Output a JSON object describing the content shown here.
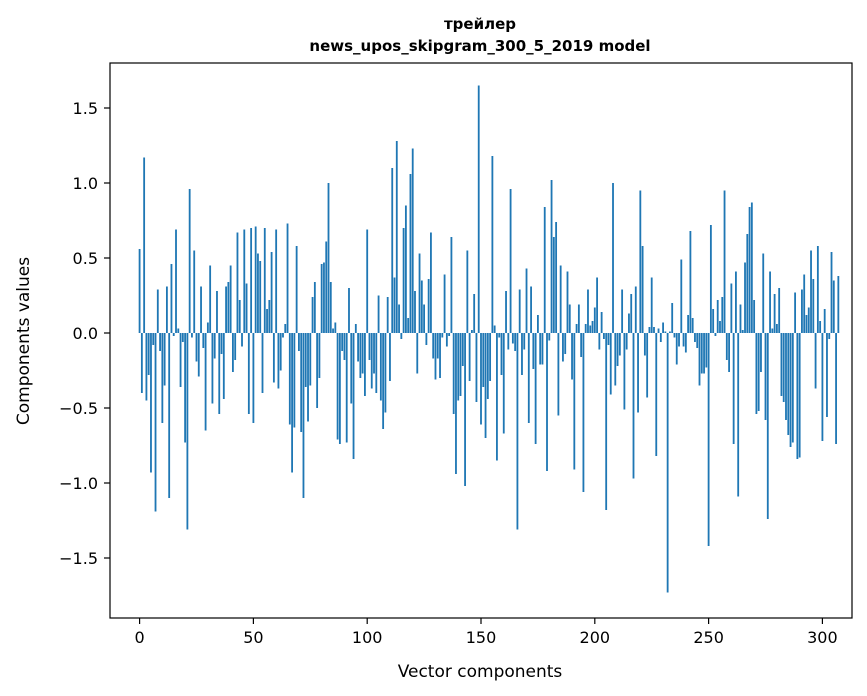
{
  "chart_data": {
    "type": "bar",
    "title": "трейлер",
    "subtitle": "news_upos_skipgram_300_5_2019 model",
    "xlabel": "Vector components",
    "ylabel": "Components values",
    "xlim": [
      -13,
      313
    ],
    "ylim": [
      -1.9,
      1.8
    ],
    "xticks": [
      0,
      50,
      100,
      150,
      200,
      250,
      300
    ],
    "xtick_labels": [
      "0",
      "50",
      "100",
      "150",
      "200",
      "250",
      "300"
    ],
    "yticks": [
      1.5,
      1.0,
      0.5,
      0.0,
      -0.5,
      -1.0,
      -1.5
    ],
    "ytick_labels": [
      "1.5",
      "1.0",
      "0.5",
      "0.0",
      "−0.5",
      "−1.0",
      "−1.5"
    ],
    "grid": false,
    "bar_color": "#1f77b4",
    "values": [
      0.56,
      -0.4,
      1.17,
      -0.45,
      -0.28,
      -0.93,
      -0.08,
      -1.19,
      0.29,
      -0.12,
      -0.6,
      -0.35,
      0.31,
      -1.1,
      0.46,
      -0.02,
      0.69,
      0.03,
      -0.36,
      -0.06,
      -0.73,
      -1.31,
      0.96,
      -0.03,
      0.55,
      -0.19,
      -0.29,
      0.31,
      -0.1,
      -0.65,
      0.07,
      0.45,
      -0.47,
      -0.17,
      0.28,
      -0.54,
      -0.14,
      -0.44,
      0.31,
      0.34,
      0.45,
      -0.26,
      -0.18,
      0.67,
      0.22,
      -0.09,
      0.69,
      0.33,
      -0.54,
      0.7,
      -0.6,
      0.71,
      0.53,
      0.48,
      -0.4,
      0.7,
      0.16,
      0.22,
      0.54,
      -0.33,
      0.69,
      -0.37,
      -0.25,
      -0.03,
      0.06,
      0.73,
      -0.61,
      -0.93,
      -0.63,
      0.58,
      -0.12,
      -0.66,
      -1.1,
      -0.36,
      -0.59,
      -0.35,
      0.24,
      0.34,
      -0.5,
      -0.3,
      0.46,
      0.47,
      0.61,
      1.0,
      0.34,
      0.03,
      0.07,
      -0.71,
      -0.74,
      -0.12,
      -0.18,
      -0.73,
      0.3,
      -0.47,
      -0.84,
      0.06,
      -0.19,
      -0.3,
      -0.27,
      -0.42,
      0.69,
      -0.18,
      -0.37,
      -0.27,
      -0.4,
      0.25,
      -0.45,
      -0.64,
      -0.53,
      0.24,
      -0.32,
      1.1,
      0.37,
      1.28,
      0.19,
      -0.04,
      0.7,
      0.85,
      0.1,
      1.06,
      1.23,
      0.28,
      -0.27,
      0.53,
      0.35,
      0.19,
      -0.08,
      0.36,
      0.67,
      -0.17,
      -0.31,
      -0.17,
      -0.3,
      -0.03,
      0.39,
      -0.09,
      -0.02,
      0.64,
      -0.54,
      -0.94,
      -0.45,
      -0.42,
      -0.22,
      -1.02,
      0.55,
      -0.32,
      0.02,
      0.26,
      -0.46,
      1.65,
      -0.61,
      -0.36,
      -0.7,
      -0.44,
      -0.32,
      1.18,
      0.05,
      -0.85,
      -0.03,
      -0.28,
      -0.67,
      0.28,
      -0.11,
      0.96,
      -0.07,
      -0.12,
      -1.31,
      0.29,
      -0.28,
      -0.11,
      0.43,
      -0.6,
      0.31,
      -0.24,
      -0.74,
      0.12,
      -0.21,
      -0.21,
      0.84,
      -0.92,
      -0.05,
      1.02,
      0.64,
      0.74,
      -0.55,
      0.45,
      -0.19,
      -0.14,
      0.41,
      0.19,
      -0.31,
      -0.91,
      0.06,
      0.19,
      -0.16,
      -1.06,
      0.06,
      0.29,
      0.05,
      0.08,
      0.17,
      0.37,
      -0.11,
      0.14,
      -0.04,
      -1.18,
      -0.08,
      -0.41,
      1.0,
      -0.35,
      -0.22,
      -0.15,
      0.29,
      -0.51,
      -0.11,
      0.13,
      0.26,
      -0.97,
      0.31,
      -0.53,
      0.95,
      0.58,
      -0.15,
      -0.43,
      0.04,
      0.37,
      0.04,
      -0.82,
      0.03,
      -0.06,
      0.07,
      0.01,
      -1.73,
      0.01,
      0.2,
      -0.03,
      -0.21,
      -0.09,
      0.49,
      -0.09,
      -0.13,
      0.12,
      0.68,
      0.1,
      -0.06,
      -0.1,
      -0.35,
      -0.27,
      -0.27,
      -0.23,
      -1.42,
      0.72,
      0.16,
      -0.02,
      0.22,
      0.08,
      0.24,
      0.95,
      -0.18,
      -0.26,
      0.33,
      -0.74,
      0.41,
      -1.09,
      0.19,
      0.02,
      0.47,
      0.66,
      0.84,
      0.87,
      0.22,
      -0.54,
      -0.52,
      -0.26,
      0.53,
      -0.58,
      -1.24,
      0.41,
      0.03,
      0.26,
      0.06,
      0.3,
      -0.42,
      -0.46,
      -0.58,
      -0.68,
      -0.76,
      -0.73,
      0.27,
      -0.84,
      -0.83,
      0.29,
      0.39,
      0.12,
      0.17,
      0.55,
      0.36,
      -0.37,
      0.58,
      0.08,
      -0.72,
      0.16,
      -0.56,
      -0.04,
      0.54,
      0.35,
      -0.74,
      0.38
    ]
  }
}
